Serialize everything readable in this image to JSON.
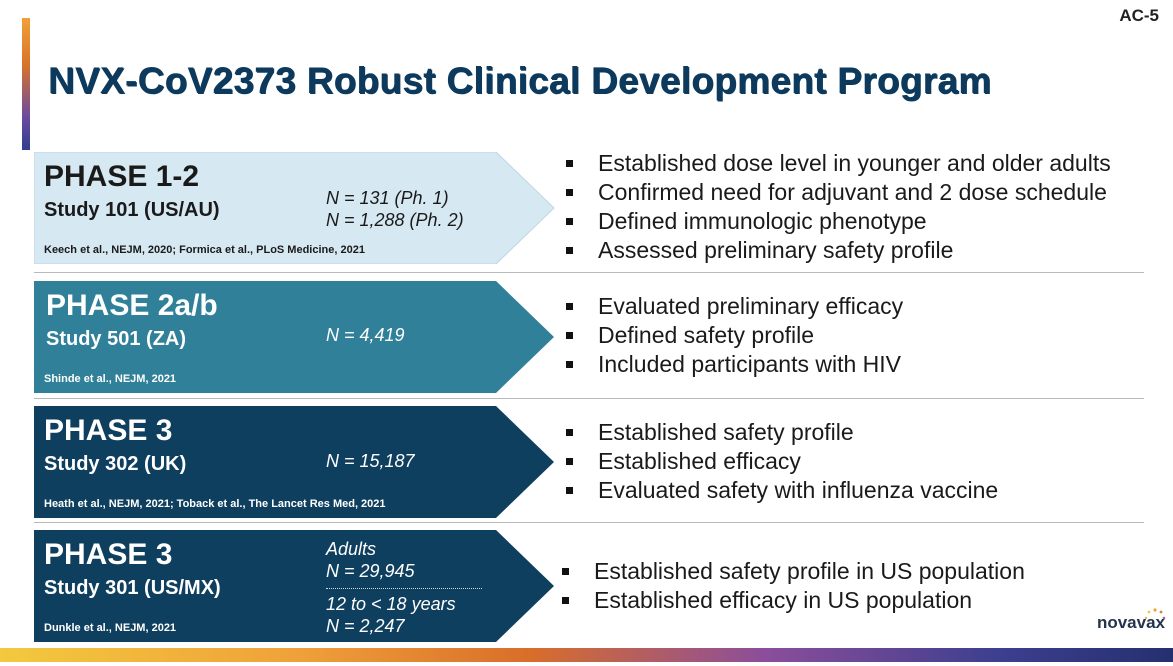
{
  "slide_id": "AC-5",
  "title": "NVX-CoV2373 Robust Clinical Development Program",
  "logo_text": "novavax",
  "colors": {
    "title": "#0d3a5c",
    "phase1_fill": "#d6e9f3",
    "phase2_fill": "#2f8098",
    "phase3_fill": "#0f3f5e"
  },
  "rows": [
    {
      "phase": "PHASE 1-2",
      "study": "Study 101 (US/AU)",
      "n_lines": [
        "N = 131 (Ph. 1)",
        "N = 1,288 (Ph. 2)"
      ],
      "reference": "Keech et al., NEJM, 2020; Formica et al., PLoS Medicine, 2021",
      "bullets": [
        "Established dose level in younger and older adults",
        "Confirmed need for adjuvant and 2 dose schedule",
        "Defined immunologic phenotype",
        "Assessed preliminary safety profile"
      ]
    },
    {
      "phase": "PHASE 2a/b",
      "study": "Study 501 (ZA)",
      "n_lines": [
        "N = 4,419"
      ],
      "reference": "Shinde et al., NEJM, 2021",
      "bullets": [
        "Evaluated preliminary efficacy",
        "Defined safety profile",
        "Included participants with HIV"
      ]
    },
    {
      "phase": "PHASE 3",
      "study": "Study 302 (UK)",
      "n_lines": [
        "N = 15,187"
      ],
      "reference": "Heath et al., NEJM, 2021; Toback et al., The Lancet Res Med, 2021",
      "bullets": [
        "Established safety profile",
        "Established efficacy",
        "Evaluated safety with influenza vaccine"
      ]
    },
    {
      "phase": "PHASE 3",
      "study": "Study 301 (US/MX)",
      "n_groups": [
        {
          "label": "Adults",
          "n": "N = 29,945"
        },
        {
          "label": "12 to < 18 years",
          "n": "N = 2,247"
        }
      ],
      "reference": "Dunkle et al., NEJM, 2021",
      "bullets": [
        "Established safety profile in US population",
        "Established efficacy in US population"
      ]
    }
  ]
}
